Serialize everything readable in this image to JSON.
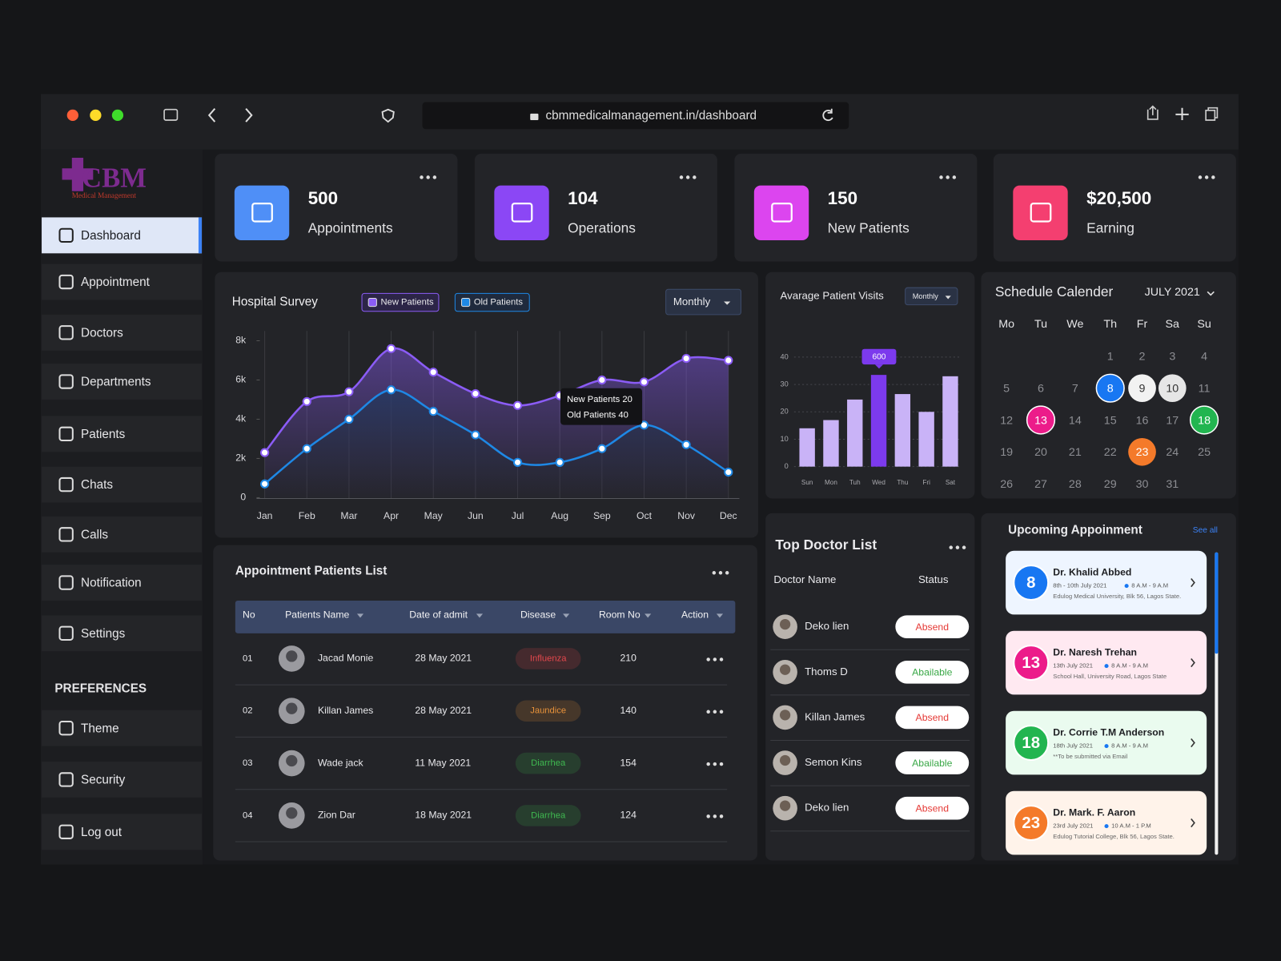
{
  "browser": {
    "url": "cbmmedicalmanagement.in/dashboard"
  },
  "logo": {
    "title": "CBM",
    "subtitle": "Medical Management"
  },
  "sidebar": {
    "items": [
      "Dashboard",
      "Appointment",
      "Doctors",
      "Departments",
      "Patients",
      "Chats",
      "Calls",
      "Notification",
      "Settings"
    ],
    "section": "PREFERENCES",
    "preferences": [
      "Theme",
      "Security",
      "Log out"
    ]
  },
  "stats": [
    {
      "value": "500",
      "label": "Appointments",
      "color": "#4f8ff7"
    },
    {
      "value": "104",
      "label": "Operations",
      "color": "#8b47f5"
    },
    {
      "value": "150",
      "label": "New Patients",
      "color": "#dc45ef"
    },
    {
      "value": "$20,500",
      "label": "Earning",
      "color": "#f43f70"
    }
  ],
  "hospital_survey": {
    "type": "line",
    "title": "Hospital Survey",
    "filter": "Monthly",
    "categories": [
      "Jan",
      "Feb",
      "Mar",
      "Apr",
      "May",
      "Jun",
      "Jul",
      "Aug",
      "Sep",
      "Oct",
      "Nov",
      "Dec"
    ],
    "ylim": [
      0,
      8000
    ],
    "yticks": [
      0,
      {
        "value": 2000,
        "label": "2k"
      },
      {
        "value": 4000,
        "label": "4k"
      },
      {
        "value": 6000,
        "label": "6k"
      },
      {
        "value": 8000,
        "label": "8k"
      }
    ],
    "series": [
      {
        "name": "New Patients",
        "color": "#8b5cf6",
        "values": [
          2300,
          4900,
          5400,
          7600,
          6400,
          5300,
          4700,
          5200,
          6000,
          5900,
          7100,
          7000
        ]
      },
      {
        "name": "Old Patients",
        "color": "#1e88e5",
        "values": [
          700,
          2500,
          4000,
          5500,
          4400,
          3200,
          1800,
          1800,
          2500,
          3700,
          2700,
          1300
        ]
      }
    ],
    "tooltip": [
      "New Patients 20",
      "Old Patients 40"
    ]
  },
  "visits": {
    "type": "bar",
    "title": "Avarage Patient Visits",
    "filter": "Monthly",
    "categories": [
      "Sun",
      "Mon",
      "Tuh",
      "Wed",
      "Thu",
      "Fri",
      "Sat"
    ],
    "values": [
      14,
      17,
      24.5,
      33.5,
      26.5,
      20,
      33
    ],
    "colors": [
      "#c9b3f7",
      "#c9b3f7",
      "#c9b3f7",
      "#7c3aed",
      "#c9b3f7",
      "#c9b3f7",
      "#c9b3f7"
    ],
    "ylim": [
      0,
      40
    ],
    "yticks": [
      0,
      10,
      20,
      30,
      40
    ],
    "annotation": "600"
  },
  "calendar": {
    "title": "Schedule Calender",
    "month": "JULY 2021",
    "weekdays": [
      "Mo",
      "Tu",
      "We",
      "Th",
      "Fr",
      "Sa",
      "Su"
    ],
    "weeks": [
      [
        null,
        null,
        null,
        1,
        2,
        3,
        4
      ],
      [
        5,
        6,
        7,
        8,
        9,
        10,
        11
      ],
      [
        12,
        13,
        14,
        15,
        16,
        17,
        18
      ],
      [
        19,
        20,
        21,
        22,
        23,
        24,
        25
      ],
      [
        26,
        27,
        28,
        29,
        30,
        31,
        null
      ]
    ],
    "highlights": [
      {
        "day": 8,
        "color": "#1877f2"
      },
      {
        "day": 9,
        "color": "#f2f2f2"
      },
      {
        "day": 10,
        "color": "#e6e6e6"
      },
      {
        "day": 13,
        "color": "#ec1c8a"
      },
      {
        "day": 18,
        "color": "#22b550"
      },
      {
        "day": 23,
        "color": "#f47a2a"
      }
    ]
  },
  "appointments": {
    "title": "Appointment Patients List",
    "headers": [
      "No",
      "Patients Name",
      "Date of admit",
      "Disease",
      "Room No",
      "Action"
    ],
    "rows": [
      {
        "no": "01",
        "name": "Jacad Monie",
        "date": "28 May 2021",
        "disease": "Influenza",
        "room": "210",
        "color": "#e5484d"
      },
      {
        "no": "02",
        "name": "Killan James",
        "date": "28 May 2021",
        "disease": "Jaundice",
        "room": "140",
        "color": "#e8923a"
      },
      {
        "no": "03",
        "name": "Wade jack",
        "date": "11 May 2021",
        "disease": "Diarrhea",
        "room": "154",
        "color": "#3fb950"
      },
      {
        "no": "04",
        "name": "Zion Dar",
        "date": "18 May 2021",
        "disease": "Diarrhea",
        "room": "124",
        "color": "#3fb950"
      }
    ]
  },
  "doctors": {
    "title": "Top Doctor List",
    "headers": [
      "Doctor Name",
      "Status"
    ],
    "rows": [
      {
        "name": "Deko lien",
        "status": "Absend",
        "color": "#e53935"
      },
      {
        "name": "Thoms D",
        "status": "Abailable",
        "color": "#3aa847"
      },
      {
        "name": "Killan James",
        "status": "Absend",
        "color": "#e53935"
      },
      {
        "name": "Semon Kins",
        "status": "Abailable",
        "color": "#3aa847"
      },
      {
        "name": "Deko lien",
        "status": "Absend",
        "color": "#e53935"
      }
    ]
  },
  "upcoming": {
    "title": "Upcoming Appoinment",
    "link": "See all",
    "cards": [
      {
        "day": "8",
        "doctor": "Dr. Khalid Abbed",
        "date": "8th - 10th July 2021",
        "time": "8 A.M - 9 A.M",
        "place": "Edulog Medical University, Blk 56, Lagos State.",
        "color": "#1877f2",
        "background": "#eef5ff"
      },
      {
        "day": "13",
        "doctor": "Dr. Naresh Trehan",
        "date": "13th July 2021",
        "time": "8 A.M - 9 A.M",
        "place": "School Hall, University Road, Lagos State",
        "color": "#ec1c8a",
        "background": "#ffe9f1"
      },
      {
        "day": "18",
        "doctor": "Dr. Corrie T.M Anderson",
        "date": "18th July 2021",
        "time": "8 A.M - 9 A.M",
        "place": "**To be submitted via Email",
        "color": "#22b550",
        "background": "#eafbef"
      },
      {
        "day": "23",
        "doctor": "Dr. Mark. F. Aaron",
        "date": "23rd July 2021",
        "time": "10 A.M - 1 P.M",
        "place": "Edulog Tutorial College, Blk 56, Lagos State.",
        "color": "#f47a2a",
        "background": "#fff3ea"
      }
    ]
  }
}
